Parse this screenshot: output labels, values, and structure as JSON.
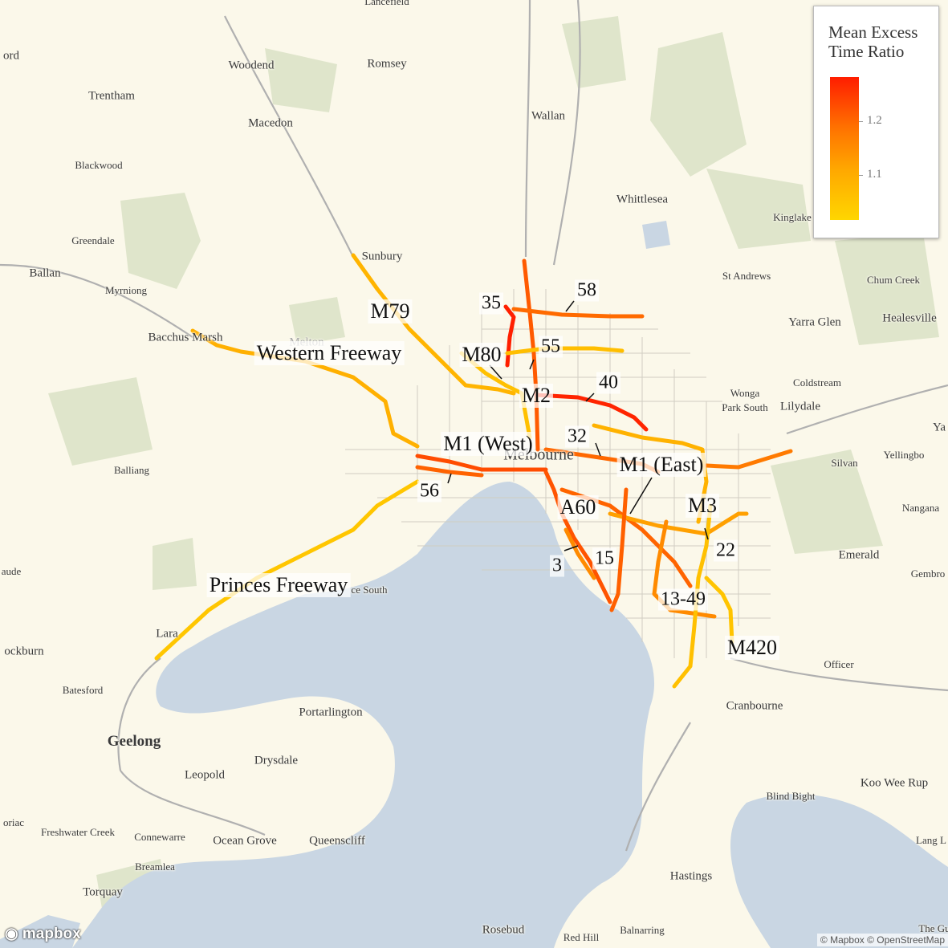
{
  "legend": {
    "title_line1": "Mean Excess",
    "title_line2": "Time Ratio",
    "ticks": [
      "1.2",
      "1.1"
    ]
  },
  "colors": {
    "high": "#ff1d00",
    "mid": "#ff7100",
    "low": "#ffd600",
    "water": "#c9d6e3",
    "land": "#fbf8ea",
    "park": "#dfe5cb"
  },
  "places": {
    "lancefield": "Lancefield",
    "ford": "ord",
    "woodend": "Woodend",
    "romsey": "Romsey",
    "trentham": "Trentham",
    "macedon": "Macedon",
    "wallan": "Wallan",
    "blackwood": "Blackwood",
    "whittlesea": "Whittlesea",
    "kinglake": "Kinglake",
    "greendale": "Greendale",
    "sunbury": "Sunbury",
    "ballan": "Ballan",
    "myrniong": "Myrniong",
    "st_andrews": "St Andrews",
    "chum_creek": "Chum Creek",
    "bacchus_marsh": "Bacchus Marsh",
    "melton": "Melton",
    "yarra_glen": "Yarra Glen",
    "healesville": "Healesville",
    "coldstream": "Coldstream",
    "wonga": "Wonga",
    "park_south": "Park South",
    "lilydale": "Lilydale",
    "ya": "Ya",
    "balliang": "Balliang",
    "melbourne": "Melbourne",
    "silvan": "Silvan",
    "yellingbo": "Yellingbo",
    "nangana": "Nangana",
    "emerald": "Emerald",
    "gembrook": "Gembro",
    "aude": "aude",
    "avalon_south": "ce South",
    "lara": "Lara",
    "cockburn": "ockburn",
    "officer": "Officer",
    "batesford": "Batesford",
    "cranbourne": "Cranbourne",
    "portarlington": "Portarlington",
    "geelong": "Geelong",
    "drysdale": "Drysdale",
    "leopold": "Leopold",
    "koo_wee_rup": "Koo Wee Rup",
    "blind_bight": "Blind Bight",
    "moriac": "oriac",
    "freshwater_creek": "Freshwater Creek",
    "connewarre": "Connewarre",
    "ocean_grove": "Ocean Grove",
    "queenscliff": "Queenscliff",
    "lang_lang": "Lang L",
    "breamlea": "Breamlea",
    "hastings": "Hastings",
    "torquay": "Torquay",
    "rosebud": "Rosebud",
    "red_hill": "Red Hill",
    "balnarring": "Balnarring",
    "the_gurdies": "The Gu"
  },
  "routes": {
    "m79": "M79",
    "western_freeway": "Western Freeway",
    "r35": "35",
    "r58": "58",
    "m80": "M80",
    "r55": "55",
    "r40": "40",
    "m2": "M2",
    "m1_west": "M1 (West)",
    "r32": "32",
    "m1_east": "M1 (East)",
    "r56": "56",
    "a60": "A60",
    "m3": "M3",
    "r22": "22",
    "r3": "3",
    "r15": "15",
    "princes_freeway": "Princes Freeway",
    "r13_49": "13-49",
    "m420": "M420"
  },
  "attribution": {
    "logo": "mapbox",
    "text": "© Mapbox © OpenStreetMap"
  }
}
